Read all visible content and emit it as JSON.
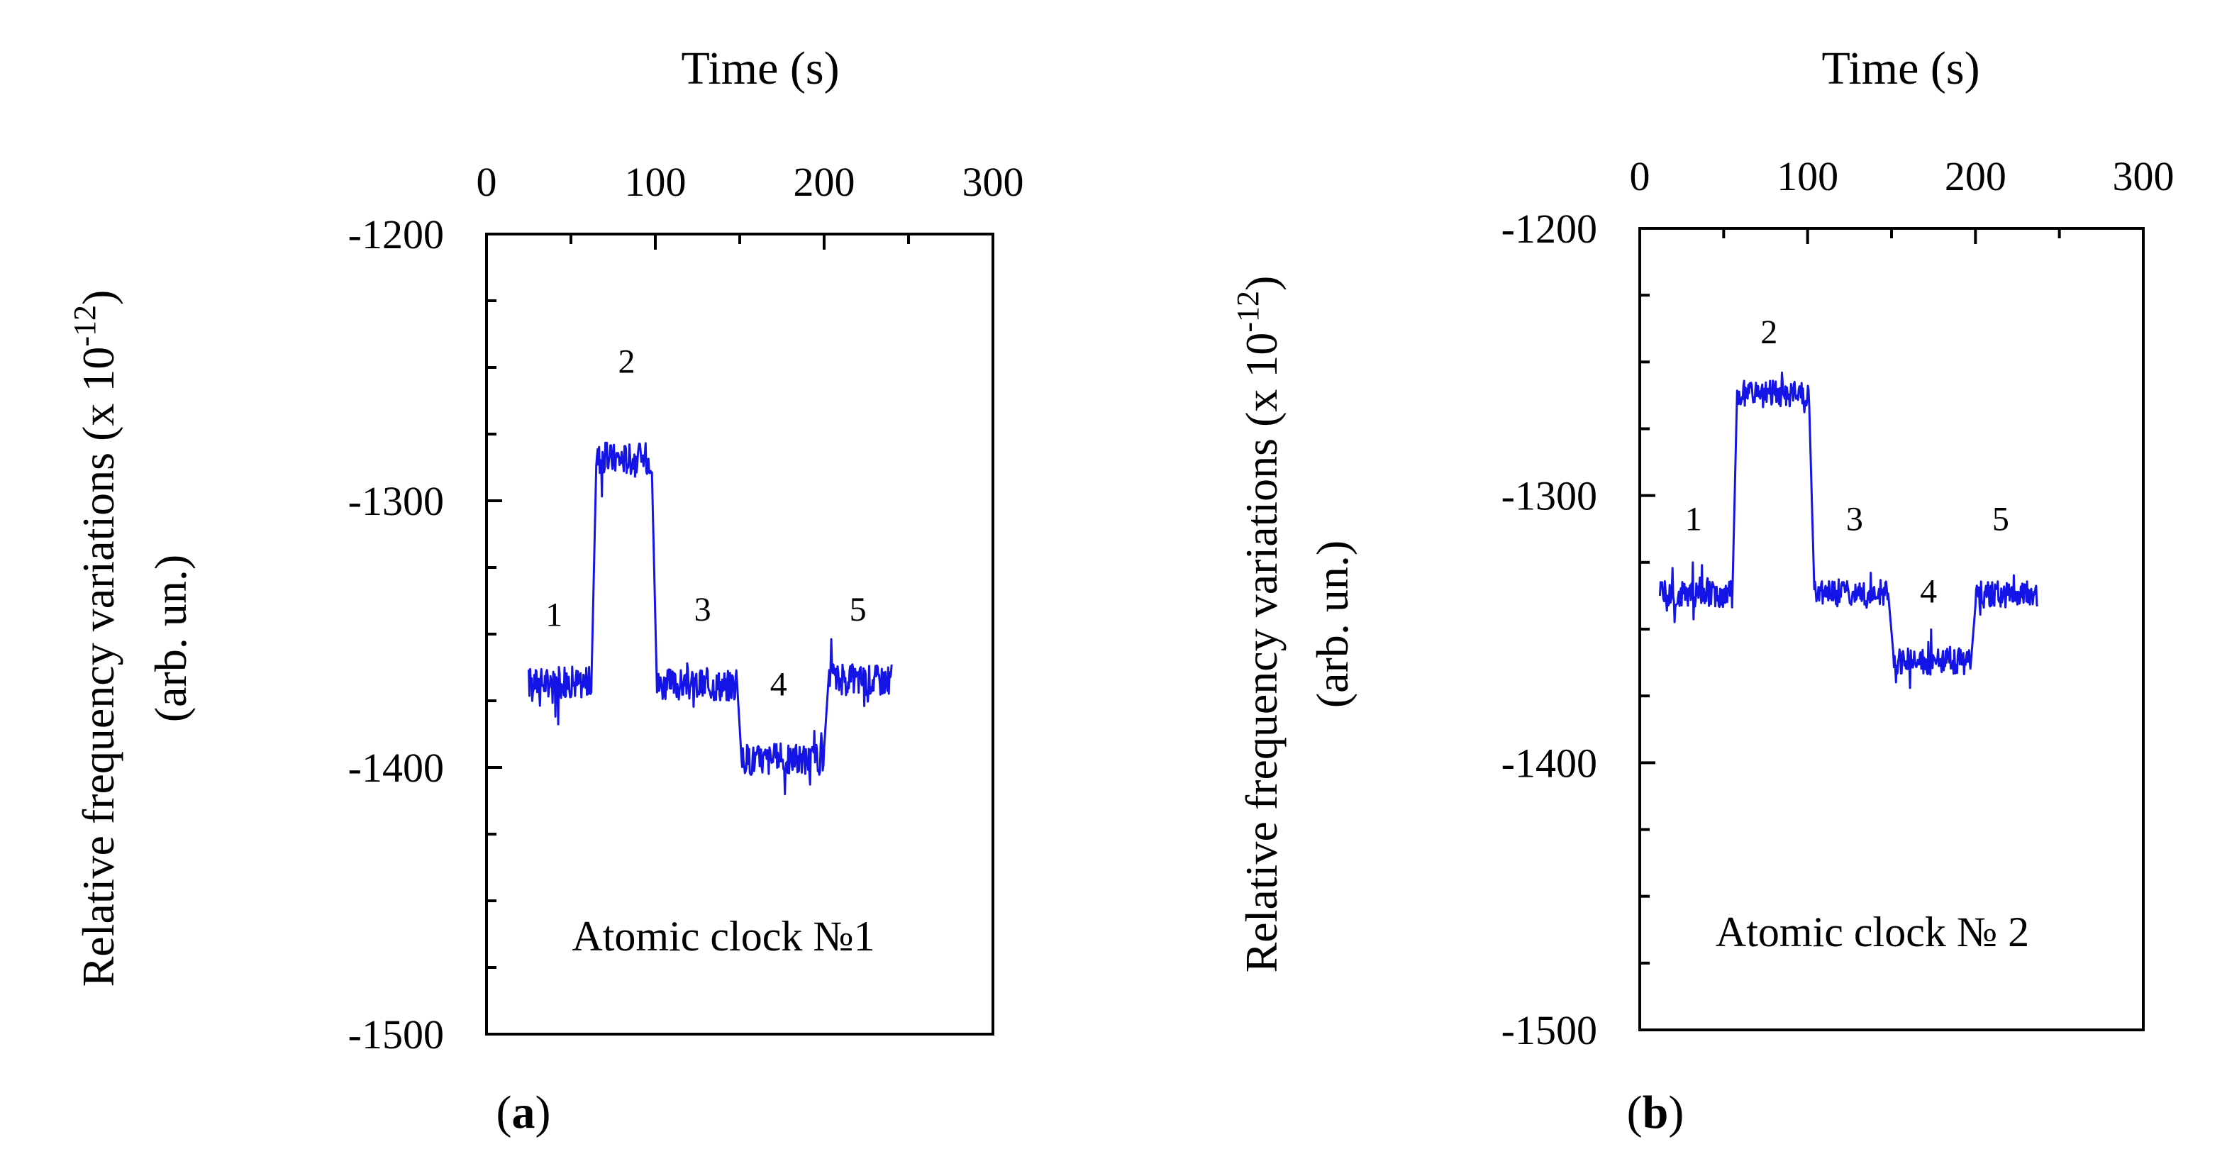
{
  "chart_data": [
    {
      "type": "line",
      "panel_label": "a",
      "title": "Time (s)",
      "xlabel": "Time (s)",
      "xlim": [
        0,
        300
      ],
      "x_ticks": [
        "0",
        "100",
        "200",
        "300"
      ],
      "ylabel_line1": "Relative frequency variations (x 10",
      "ylabel_exp": "-12",
      "ylabel_close": ")",
      "ylabel_line2": "(arb. un.)",
      "ylim": [
        -1500,
        -1200
      ],
      "y_ticks": [
        "-1200",
        "-1300",
        "-1400",
        "-1500"
      ],
      "annotation": "Atomic clock №1",
      "segments": [
        {
          "label": "1",
          "x_start": 25,
          "x_end": 62,
          "level": -1368,
          "label_x": 40,
          "label_y": -1347
        },
        {
          "label": "2",
          "x_start": 65,
          "x_end": 98,
          "level": -1284,
          "label_x": 83,
          "label_y": -1252
        },
        {
          "label": "3",
          "x_start": 101,
          "x_end": 148,
          "level": -1369,
          "label_x": 128,
          "label_y": -1345
        },
        {
          "label": "4",
          "x_start": 151,
          "x_end": 200,
          "level": -1397,
          "label_x": 173,
          "label_y": -1373
        },
        {
          "label": "5",
          "x_start": 203,
          "x_end": 240,
          "level": -1367,
          "label_x": 220,
          "label_y": -1345
        }
      ],
      "noise": 6
    },
    {
      "type": "line",
      "panel_label": "b",
      "title": "Time (s)",
      "xlabel": "Time (s)",
      "xlim": [
        0,
        300
      ],
      "x_ticks": [
        "0",
        "100",
        "200",
        "300"
      ],
      "ylabel_line1": "Relative frequency variations (x 10",
      "ylabel_exp": "-12",
      "ylabel_close": ")",
      "ylabel_line2": "(arb. un.)",
      "ylim": [
        -1500,
        -1200
      ],
      "y_ticks": [
        "-1200",
        "-1300",
        "-1400",
        "-1500"
      ],
      "annotation": "Atomic clock № 2",
      "segments": [
        {
          "label": "1",
          "x_start": 12,
          "x_end": 55,
          "level": -1337,
          "label_x": 32,
          "label_y": -1313
        },
        {
          "label": "2",
          "x_start": 58,
          "x_end": 101,
          "level": -1262,
          "label_x": 77,
          "label_y": -1243
        },
        {
          "label": "3",
          "x_start": 104,
          "x_end": 148,
          "level": -1337,
          "label_x": 128,
          "label_y": -1313
        },
        {
          "label": "4",
          "x_start": 151,
          "x_end": 197,
          "level": -1362,
          "label_x": 172,
          "label_y": -1340
        },
        {
          "label": "5",
          "x_start": 200,
          "x_end": 237,
          "level": -1337,
          "label_x": 215,
          "label_y": -1313
        }
      ],
      "noise": 5
    }
  ]
}
